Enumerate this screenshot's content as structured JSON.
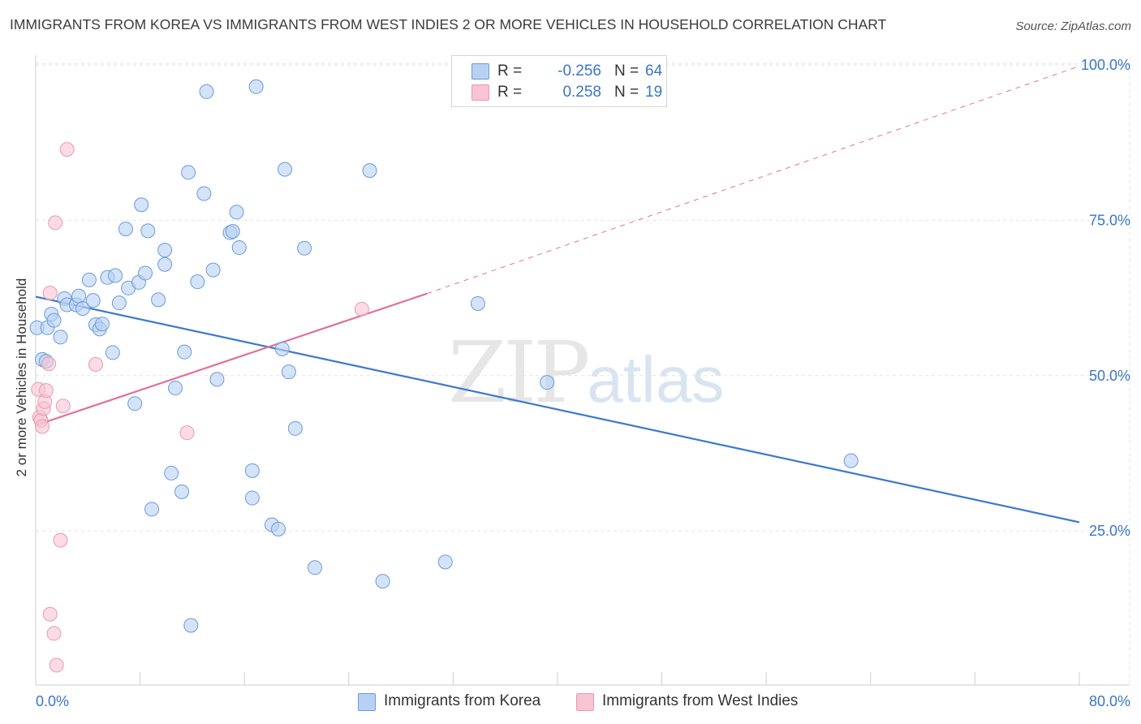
{
  "title": "IMMIGRANTS FROM KOREA VS IMMIGRANTS FROM WEST INDIES 2 OR MORE VEHICLES IN HOUSEHOLD CORRELATION CHART",
  "source": "Source: ZipAtlas.com",
  "watermark": {
    "zip": "ZIP",
    "atlas": "atlas"
  },
  "legend": {
    "korea": {
      "r_label": "R =",
      "r_value": "-0.256",
      "n_label": "N =",
      "n_value": "64"
    },
    "west_indies": {
      "r_label": "R =",
      "r_value": "0.258",
      "n_label": "N =",
      "n_value": "19"
    }
  },
  "colors": {
    "korea_fill": "#b8d1f3",
    "korea_stroke": "#6a9bd8",
    "korea_line": "#3b78d0",
    "wi_fill": "#f8c3d3",
    "wi_stroke": "#e89ab2",
    "wi_line": "#e0709a",
    "axis_text": "#3b75c9",
    "grid": "#e3e3e3"
  },
  "chart_data": {
    "type": "scatter",
    "title": "IMMIGRANTS FROM KOREA VS IMMIGRANTS FROM WEST INDIES 2 OR MORE VEHICLES IN HOUSEHOLD CORRELATION CHART",
    "xlabel": "",
    "ylabel": "2 or more Vehicles in Household",
    "xlim": [
      0,
      80
    ],
    "ylim": [
      0,
      102
    ],
    "x_tick_labels": [
      "0.0%",
      "80.0%"
    ],
    "y_ticks": [
      25,
      50,
      75,
      100
    ],
    "y_tick_labels": [
      "25.0%",
      "50.0%",
      "75.0%",
      "100.0%"
    ],
    "grid": true,
    "series": [
      {
        "name": "Immigrants from Korea",
        "points": [
          [
            0.1,
            57.7
          ],
          [
            0.5,
            52.6
          ],
          [
            0.9,
            57.7
          ],
          [
            1.2,
            59.9
          ],
          [
            1.4,
            58.9
          ],
          [
            1.9,
            56.2
          ],
          [
            2.2,
            62.4
          ],
          [
            2.4,
            61.4
          ],
          [
            3.1,
            61.4
          ],
          [
            3.3,
            62.8
          ],
          [
            3.6,
            60.8
          ],
          [
            4.1,
            65.4
          ],
          [
            4.4,
            62.1
          ],
          [
            4.6,
            58.2
          ],
          [
            4.9,
            57.5
          ],
          [
            5.1,
            58.3
          ],
          [
            5.5,
            65.8
          ],
          [
            5.9,
            53.7
          ],
          [
            6.1,
            66.1
          ],
          [
            6.4,
            61.7
          ],
          [
            6.9,
            73.6
          ],
          [
            7.1,
            64.1
          ],
          [
            7.6,
            45.5
          ],
          [
            7.9,
            65.0
          ],
          [
            8.1,
            77.5
          ],
          [
            8.4,
            66.5
          ],
          [
            8.6,
            73.3
          ],
          [
            8.9,
            28.5
          ],
          [
            9.4,
            62.2
          ],
          [
            9.9,
            70.2
          ],
          [
            9.9,
            67.9
          ],
          [
            10.4,
            34.3
          ],
          [
            10.7,
            48.0
          ],
          [
            11.2,
            31.3
          ],
          [
            11.4,
            53.8
          ],
          [
            11.7,
            82.7
          ],
          [
            11.9,
            9.8
          ],
          [
            12.4,
            65.1
          ],
          [
            12.9,
            79.3
          ],
          [
            13.1,
            95.7
          ],
          [
            13.6,
            67.0
          ],
          [
            13.9,
            49.4
          ],
          [
            14.9,
            73.0
          ],
          [
            15.1,
            73.2
          ],
          [
            15.4,
            76.3
          ],
          [
            15.6,
            70.6
          ],
          [
            16.6,
            34.7
          ],
          [
            16.6,
            30.3
          ],
          [
            16.9,
            96.5
          ],
          [
            18.1,
            26.0
          ],
          [
            18.6,
            25.3
          ],
          [
            18.9,
            54.3
          ],
          [
            19.1,
            83.2
          ],
          [
            19.4,
            50.6
          ],
          [
            19.9,
            41.5
          ],
          [
            20.6,
            70.5
          ],
          [
            21.4,
            19.1
          ],
          [
            25.6,
            83.0
          ],
          [
            26.6,
            16.9
          ],
          [
            31.4,
            20.0
          ],
          [
            33.9,
            61.6
          ],
          [
            39.2,
            48.9
          ],
          [
            62.5,
            36.3
          ],
          [
            0.8,
            52.3
          ]
        ]
      },
      {
        "name": "Immigrants from West Indies",
        "points": [
          [
            0.2,
            47.8
          ],
          [
            0.3,
            43.3
          ],
          [
            0.4,
            42.8
          ],
          [
            0.5,
            41.8
          ],
          [
            0.6,
            44.7
          ],
          [
            0.7,
            45.8
          ],
          [
            0.8,
            47.6
          ],
          [
            1.0,
            51.9
          ],
          [
            1.1,
            63.3
          ],
          [
            1.1,
            11.6
          ],
          [
            1.4,
            8.5
          ],
          [
            1.5,
            74.6
          ],
          [
            1.6,
            3.4
          ],
          [
            1.9,
            23.5
          ],
          [
            2.1,
            45.1
          ],
          [
            2.4,
            86.4
          ],
          [
            4.6,
            51.8
          ],
          [
            11.6,
            40.8
          ],
          [
            25.0,
            60.7
          ]
        ]
      }
    ],
    "trend_lines": [
      {
        "series": "Immigrants from Korea",
        "x": [
          0,
          80
        ],
        "y": [
          62.7,
          26.4
        ],
        "style": "solid"
      },
      {
        "series": "Immigrants from West Indies",
        "x": [
          0,
          30
        ],
        "y": [
          42.0,
          63.2
        ],
        "style": "solid"
      },
      {
        "series": "Immigrants from West Indies",
        "x": [
          30,
          80
        ],
        "y": [
          63.2,
          99.8
        ],
        "style": "dashed"
      }
    ]
  }
}
